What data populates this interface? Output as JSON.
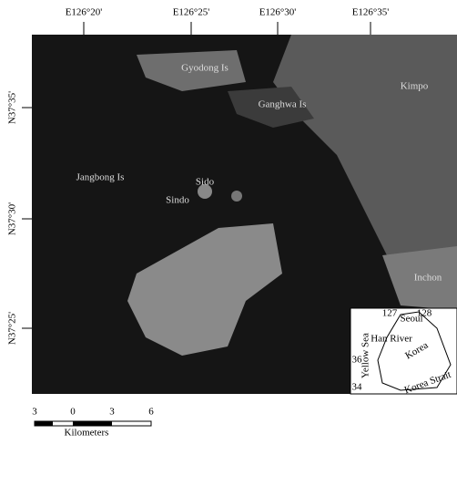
{
  "map": {
    "top_labels": [
      "E126°20'",
      "E126°25'",
      "E126°30'",
      "E126°35'"
    ],
    "left_labels": [
      "N37°35'",
      "N37°30'",
      "N37°25'"
    ],
    "places": [
      "Gyodong Is",
      "Ganghwa Is",
      "Kimpo",
      "Jangbong Is",
      "Sido",
      "Sindo",
      "Inchon"
    ],
    "inset": {
      "lon_labels": [
        "127",
        "128"
      ],
      "lat_labels": [
        "36",
        "34"
      ],
      "names": [
        "Seoul",
        "Han River",
        "Korea",
        "Yellow Sea",
        "Korea Strait"
      ]
    },
    "scale": {
      "ticks": [
        "3",
        "0",
        "3",
        "6"
      ],
      "unit": "Kilometers"
    }
  }
}
